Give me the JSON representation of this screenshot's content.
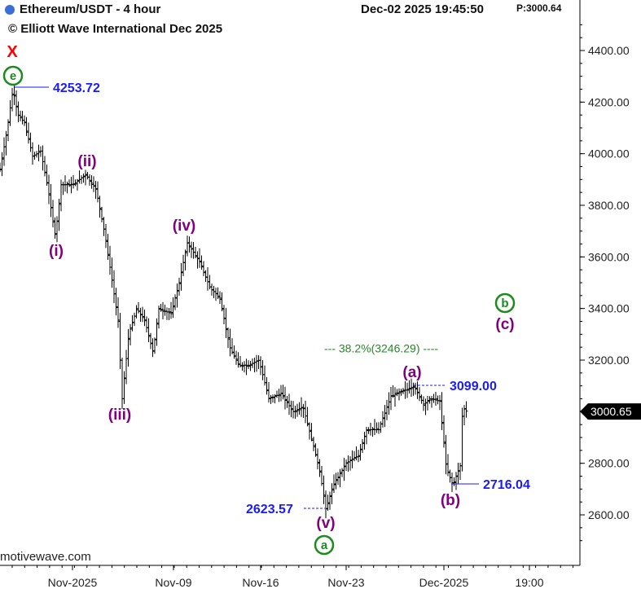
{
  "header": {
    "title": "Ethereum/USDT - 4 hour",
    "copyright": "© Elliott Wave International Dec 2025",
    "datetime": "Dec-02 2025  19:45:50",
    "price_tag": "P:3000.64"
  },
  "watermark": "motivewave.com",
  "colors": {
    "background": "#ffffff",
    "bars": "#000000",
    "minor_waves": "#800080",
    "major_waves": "#1a8c1a",
    "price_labels": "#1a1aff",
    "fib_line": "#228b22",
    "x_marker": "#ff0000",
    "current_price_tag": "#000000"
  },
  "chart_data": {
    "type": "ohlc",
    "title": "Ethereum/USDT - 4 hour",
    "ylim": [
      2480,
      4520
    ],
    "y_ticks": [
      "4400.00",
      "4200.00",
      "4000.00",
      "3800.00",
      "3600.00",
      "3400.00",
      "3200.00",
      "3000.00",
      "2800.00",
      "2600.00"
    ],
    "x_ticks": [
      "Nov-2025",
      "Nov-09",
      "Nov-16",
      "Nov-23",
      "Dec-2025",
      "19:00"
    ],
    "current_price": "3000.65",
    "price_path": [
      [
        0,
        3940
      ],
      [
        8,
        4080
      ],
      [
        16,
        4253
      ],
      [
        22,
        4150
      ],
      [
        30,
        4120
      ],
      [
        40,
        3990
      ],
      [
        50,
        4010
      ],
      [
        58,
        3880
      ],
      [
        68,
        3680
      ],
      [
        75,
        3880
      ],
      [
        90,
        3880
      ],
      [
        105,
        3920
      ],
      [
        118,
        3860
      ],
      [
        128,
        3700
      ],
      [
        138,
        3500
      ],
      [
        145,
        3350
      ],
      [
        150,
        3050
      ],
      [
        158,
        3300
      ],
      [
        168,
        3400
      ],
      [
        178,
        3350
      ],
      [
        188,
        3230
      ],
      [
        195,
        3400
      ],
      [
        210,
        3380
      ],
      [
        220,
        3500
      ],
      [
        230,
        3655
      ],
      [
        245,
        3580
      ],
      [
        258,
        3480
      ],
      [
        270,
        3440
      ],
      [
        282,
        3250
      ],
      [
        293,
        3180
      ],
      [
        305,
        3180
      ],
      [
        318,
        3200
      ],
      [
        330,
        3050
      ],
      [
        345,
        3070
      ],
      [
        360,
        3000
      ],
      [
        372,
        3020
      ],
      [
        382,
        2900
      ],
      [
        392,
        2780
      ],
      [
        400,
        2623
      ],
      [
        410,
        2720
      ],
      [
        425,
        2800
      ],
      [
        440,
        2830
      ],
      [
        450,
        2930
      ],
      [
        465,
        2930
      ],
      [
        480,
        3060
      ],
      [
        495,
        3080
      ],
      [
        508,
        3099
      ],
      [
        520,
        3030
      ],
      [
        530,
        3050
      ],
      [
        540,
        3040
      ],
      [
        548,
        2780
      ],
      [
        556,
        2716
      ],
      [
        565,
        2790
      ],
      [
        568,
        3020
      ],
      [
        573,
        3000
      ]
    ],
    "wave_labels": [
      {
        "text": "e",
        "degree": "major",
        "circled": true
      },
      {
        "text": "(i)",
        "degree": "minor"
      },
      {
        "text": "(ii)",
        "degree": "minor"
      },
      {
        "text": "(iii)",
        "degree": "minor"
      },
      {
        "text": "(iv)",
        "degree": "minor"
      },
      {
        "text": "(v)",
        "degree": "minor"
      },
      {
        "text": "a",
        "degree": "major",
        "circled": true
      },
      {
        "text": "(a)",
        "degree": "minor"
      },
      {
        "text": "(b)",
        "degree": "minor"
      },
      {
        "text": "b",
        "degree": "major",
        "circled": true
      },
      {
        "text": "(c)",
        "degree": "minor"
      }
    ],
    "marker_x": "X",
    "price_annotations": {
      "high": "4253.72",
      "low": "2623.57",
      "wave_a_top": "3099.00",
      "wave_b_low": "2716.04"
    },
    "fib_annotation": {
      "label": "38.2%(3246.29)",
      "price": 3246.29
    }
  }
}
